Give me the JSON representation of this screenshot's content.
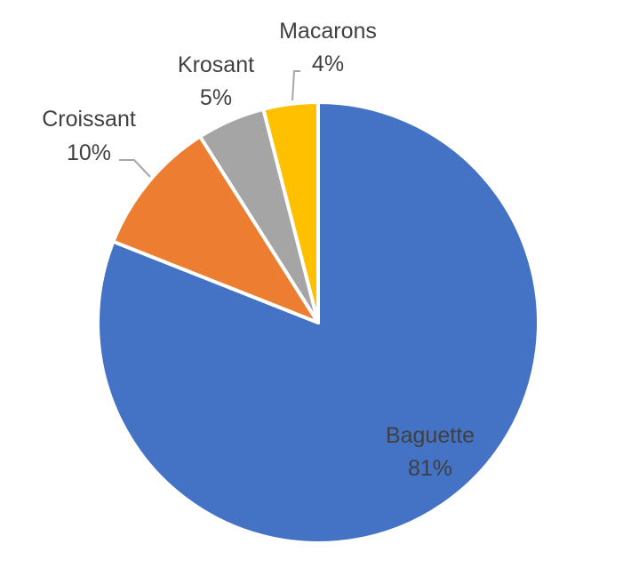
{
  "chart_data": {
    "type": "pie",
    "title": "",
    "slices": [
      {
        "name": "Baguette",
        "value": 81,
        "label": "81%",
        "color": "#4472C4"
      },
      {
        "name": "Croissant",
        "value": 10,
        "label": "10%",
        "color": "#ED7D31"
      },
      {
        "name": "Krosant",
        "value": 5,
        "label": "5%",
        "color": "#A5A5A5"
      },
      {
        "name": "Macarons",
        "value": 4,
        "label": "4%",
        "color": "#FFC000"
      }
    ],
    "start": "12 o'clock",
    "direction": "clockwise",
    "legend": "none",
    "data_labels": "category name and percentage"
  }
}
